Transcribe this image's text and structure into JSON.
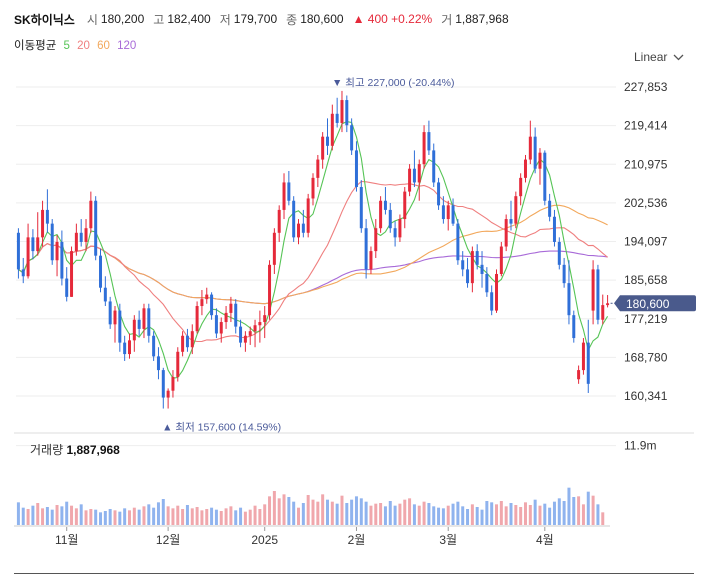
{
  "header": {
    "name": "SK하이닉스",
    "open_label": "시",
    "open": "180,200",
    "high_label": "고",
    "high": "182,400",
    "low_label": "저",
    "low": "179,700",
    "close_label": "종",
    "close": "180,600",
    "change": "▲ 400 +0.22%",
    "volume_label": "거",
    "volume": "1,887,968"
  },
  "ma": {
    "label": "이동평균",
    "items": [
      {
        "period": "5",
        "color": "#56c456"
      },
      {
        "period": "20",
        "color": "#ef7f7f"
      },
      {
        "period": "60",
        "color": "#f2a85c"
      },
      {
        "period": "120",
        "color": "#a86ad8"
      }
    ]
  },
  "scale": {
    "label": "Linear"
  },
  "volume_panel": {
    "label": "거래량",
    "value": "1,887,968"
  },
  "colors": {
    "up": "#e5293a",
    "down": "#2f6fd8",
    "up_vol": "#f0a7ac",
    "down_vol": "#8fb3ee",
    "price_tag": "#4a5a8c"
  },
  "chart_data": {
    "type": "candlestick",
    "y_ticks": [
      227853,
      219414,
      210975,
      202536,
      194097,
      185658,
      177219,
      168780,
      160341
    ],
    "y_tick_labels": [
      "227,853",
      "219,414",
      "210,975",
      "202,536",
      "194,097",
      "185,658",
      "177,219",
      "168,780",
      "160,341"
    ],
    "ylim": [
      156500,
      231000
    ],
    "x_ticks": [
      {
        "index": 10,
        "label": "11월"
      },
      {
        "index": 31,
        "label": "12월"
      },
      {
        "index": 51,
        "label": "2025"
      },
      {
        "index": 70,
        "label": "2월"
      },
      {
        "index": 89,
        "label": "3월"
      },
      {
        "index": 109,
        "label": "4월"
      }
    ],
    "current_price": {
      "value": 180600,
      "label": "180,600"
    },
    "max_marker": {
      "index": 67,
      "value": 227000,
      "label": "▼ 최고 227,000 (-20.44%)"
    },
    "min_marker": {
      "index": 31,
      "value": 157600,
      "label": "▲ 최저 157,600 (14.59%)"
    },
    "volume_ylim": [
      0,
      13500000
    ],
    "volume_tick": {
      "value": 11900000,
      "label": "11.9m"
    },
    "ohlc": [
      [
        196000,
        197000,
        186000,
        188000
      ],
      [
        188000,
        190500,
        185000,
        186500
      ],
      [
        186500,
        198000,
        186000,
        195000
      ],
      [
        195000,
        196800,
        190200,
        192000
      ],
      [
        192000,
        200500,
        191000,
        195000
      ],
      [
        195000,
        203000,
        193000,
        201000
      ],
      [
        201000,
        205500,
        196000,
        198000
      ],
      [
        198000,
        199000,
        189000,
        190000
      ],
      [
        190000,
        195500,
        186500,
        194000
      ],
      [
        194000,
        196500,
        184500,
        186000
      ],
      [
        186000,
        188500,
        181000,
        182000
      ],
      [
        182000,
        193000,
        182000,
        192000
      ],
      [
        192000,
        198000,
        191000,
        196000
      ],
      [
        196000,
        199000,
        193000,
        194000
      ],
      [
        194000,
        199000,
        192000,
        197000
      ],
      [
        197000,
        205000,
        196000,
        203000
      ],
      [
        203000,
        204000,
        190000,
        191000
      ],
      [
        191000,
        192500,
        183000,
        184000
      ],
      [
        184000,
        186500,
        180000,
        181000
      ],
      [
        181000,
        182000,
        175000,
        176000
      ],
      [
        176000,
        180000,
        172000,
        179000
      ],
      [
        179000,
        180500,
        170000,
        172000
      ],
      [
        172000,
        173500,
        168000,
        169500
      ],
      [
        169500,
        174000,
        168500,
        172500
      ],
      [
        172500,
        178000,
        170000,
        177000
      ],
      [
        177000,
        179000,
        173500,
        175000
      ],
      [
        175000,
        180500,
        173000,
        179500
      ],
      [
        179500,
        180500,
        172000,
        173500
      ],
      [
        173500,
        174500,
        168000,
        169000
      ],
      [
        169000,
        171000,
        164000,
        166000
      ],
      [
        166000,
        166500,
        157600,
        160000
      ],
      [
        160000,
        162000,
        157600,
        161500
      ],
      [
        161500,
        166000,
        160000,
        164500
      ],
      [
        164500,
        171000,
        163500,
        170000
      ],
      [
        170000,
        174500,
        169000,
        173500
      ],
      [
        173500,
        175000,
        170000,
        171000
      ],
      [
        171000,
        176000,
        169500,
        174500
      ],
      [
        174500,
        181000,
        174000,
        180000
      ],
      [
        180000,
        183500,
        178000,
        181500
      ],
      [
        181500,
        184000,
        180500,
        182500
      ],
      [
        182500,
        183000,
        177000,
        178000
      ],
      [
        178000,
        179500,
        173000,
        174000
      ],
      [
        174000,
        177500,
        172000,
        176500
      ],
      [
        176500,
        180000,
        175000,
        178500
      ],
      [
        178500,
        182000,
        176500,
        180500
      ],
      [
        180500,
        181500,
        174000,
        175500
      ],
      [
        175500,
        177000,
        171000,
        172000
      ],
      [
        172000,
        174500,
        170000,
        173500
      ],
      [
        173500,
        175500,
        171500,
        174500
      ],
      [
        174500,
        177000,
        171000,
        175800
      ],
      [
        175800,
        179000,
        172000,
        176500
      ],
      [
        176500,
        180000,
        173000,
        178000
      ],
      [
        178000,
        190000,
        177000,
        189000
      ],
      [
        189000,
        197000,
        187000,
        196000
      ],
      [
        196000,
        202000,
        194000,
        201000
      ],
      [
        201000,
        209000,
        199000,
        207000
      ],
      [
        207000,
        209500,
        202000,
        203000
      ],
      [
        203000,
        204000,
        194000,
        195000
      ],
      [
        195000,
        199000,
        193500,
        198000
      ],
      [
        198000,
        201000,
        195000,
        196000
      ],
      [
        196000,
        204500,
        195000,
        203500
      ],
      [
        203500,
        209000,
        202000,
        208000
      ],
      [
        208000,
        213000,
        206000,
        212000
      ],
      [
        212000,
        218000,
        210000,
        217000
      ],
      [
        217000,
        221000,
        213000,
        215000
      ],
      [
        215000,
        224000,
        214000,
        222000
      ],
      [
        222000,
        225500,
        219000,
        220000
      ],
      [
        220000,
        227000,
        218000,
        225000
      ],
      [
        225000,
        226000,
        218000,
        219500
      ],
      [
        219500,
        221000,
        213000,
        214000
      ],
      [
        214000,
        216000,
        205000,
        206000
      ],
      [
        206000,
        207500,
        196000,
        197000
      ],
      [
        197000,
        199000,
        186000,
        188000
      ],
      [
        188000,
        193000,
        187000,
        192000
      ],
      [
        192000,
        199000,
        190500,
        197000
      ],
      [
        197000,
        204000,
        196000,
        203000
      ],
      [
        203000,
        206000,
        200000,
        201000
      ],
      [
        201000,
        202500,
        196000,
        197000
      ],
      [
        197000,
        198500,
        193000,
        195000
      ],
      [
        195000,
        200000,
        194000,
        199000
      ],
      [
        199000,
        206000,
        197000,
        205000
      ],
      [
        205000,
        211000,
        204000,
        210000
      ],
      [
        210000,
        214000,
        206000,
        207000
      ],
      [
        207000,
        212000,
        203000,
        211000
      ],
      [
        211000,
        219500,
        210000,
        218000
      ],
      [
        218000,
        220500,
        213000,
        214000
      ],
      [
        214000,
        215500,
        206000,
        207000
      ],
      [
        207000,
        208000,
        201000,
        202000
      ],
      [
        202000,
        204000,
        198000,
        199000
      ],
      [
        199000,
        203000,
        196500,
        202000
      ],
      [
        202000,
        203500,
        197500,
        198000
      ],
      [
        198000,
        199000,
        189000,
        190000
      ],
      [
        190000,
        192000,
        186500,
        188000
      ],
      [
        188000,
        190500,
        184000,
        185000
      ],
      [
        185000,
        193000,
        183000,
        192000
      ],
      [
        192000,
        193500,
        188000,
        189000
      ],
      [
        189000,
        192000,
        184000,
        187000
      ],
      [
        187000,
        188500,
        182000,
        183000
      ],
      [
        183000,
        184500,
        178000,
        179000
      ],
      [
        179000,
        188000,
        178500,
        187000
      ],
      [
        187000,
        194000,
        186500,
        193000
      ],
      [
        193000,
        200000,
        192000,
        199000
      ],
      [
        199000,
        203000,
        196500,
        198000
      ],
      [
        198000,
        205000,
        197000,
        204000
      ],
      [
        204000,
        209000,
        202000,
        208000
      ],
      [
        208000,
        213000,
        207000,
        212000
      ],
      [
        212000,
        220500,
        211000,
        217000
      ],
      [
        217000,
        219000,
        209000,
        210000
      ],
      [
        210000,
        214500,
        206500,
        213500
      ],
      [
        213500,
        214000,
        202000,
        203000
      ],
      [
        203000,
        204500,
        198500,
        199500
      ],
      [
        199500,
        201000,
        193000,
        194000
      ],
      [
        194000,
        195000,
        188000,
        189000
      ],
      [
        189000,
        190500,
        184000,
        185000
      ],
      [
        185000,
        190000,
        176000,
        178000
      ],
      [
        178000,
        179000,
        172000,
        173000
      ],
      [
        164000,
        167000,
        163000,
        166000
      ],
      [
        166000,
        173000,
        165000,
        172000
      ],
      [
        172000,
        177000,
        161000,
        163000
      ],
      [
        179000,
        190000,
        176000,
        188000
      ],
      [
        188000,
        189000,
        176000,
        177000
      ],
      [
        177000,
        182500,
        176000,
        180200
      ],
      [
        180200,
        182400,
        179700,
        180600
      ]
    ],
    "volume": [
      3.4,
      2.6,
      2.4,
      2.9,
      3.3,
      2.5,
      2.7,
      2.3,
      3.0,
      2.8,
      3.5,
      2.9,
      2.5,
      3.1,
      2.2,
      2.4,
      2.3,
      1.9,
      2.1,
      2.4,
      2.2,
      2.0,
      2.5,
      2.2,
      2.6,
      2.3,
      2.8,
      3.1,
      2.6,
      3.4,
      3.9,
      2.8,
      2.5,
      2.9,
      2.4,
      3.0,
      2.5,
      2.7,
      2.2,
      2.4,
      2.6,
      2.3,
      2.1,
      2.5,
      2.8,
      2.2,
      2.6,
      2.0,
      2.3,
      2.9,
      2.4,
      3.1,
      4.3,
      5.1,
      4.0,
      4.6,
      4.2,
      3.5,
      2.6,
      3.3,
      4.5,
      3.8,
      3.5,
      4.6,
      3.8,
      3.5,
      3.2,
      4.4,
      3.3,
      3.8,
      4.3,
      4.0,
      3.5,
      2.9,
      3.2,
      3.3,
      2.8,
      3.6,
      2.9,
      3.2,
      3.8,
      4.0,
      3.1,
      2.9,
      3.5,
      3.3,
      2.8,
      2.6,
      2.5,
      2.9,
      3.2,
      3.5,
      2.8,
      2.4,
      3.1,
      2.7,
      2.3,
      3.6,
      3.4,
      3.1,
      3.6,
      2.8,
      3.3,
      3.0,
      2.7,
      3.4,
      3.0,
      3.8,
      2.9,
      3.2,
      2.6,
      3.5,
      4.0,
      3.6,
      5.6,
      4.2,
      4.3,
      3.1,
      5.0,
      4.4,
      3.1,
      1.9
    ]
  }
}
